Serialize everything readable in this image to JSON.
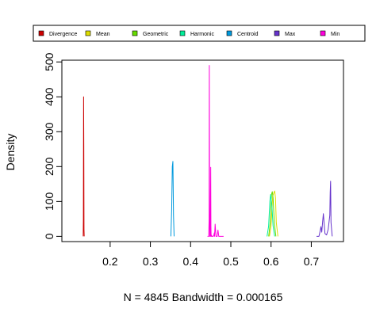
{
  "chart_data": {
    "type": "line",
    "title": "",
    "xlabel": "N = 4845   Bandwidth = 0.000165",
    "ylabel": "Density",
    "xlim": [
      0.08,
      0.78
    ],
    "ylim": [
      -15,
      505
    ],
    "x_ticks": [
      0.2,
      0.3,
      0.4,
      0.5,
      0.6,
      0.7
    ],
    "x_tick_labels": [
      "0.2",
      "0.3",
      "0.4",
      "0.5",
      "0.6",
      "0.7"
    ],
    "y_ticks": [
      0,
      100,
      200,
      300,
      400,
      500
    ],
    "y_tick_labels": [
      "0",
      "100",
      "200",
      "300",
      "400",
      "500"
    ],
    "legend": {
      "placement": "top",
      "orientation": "horizontal"
    },
    "series": [
      {
        "name": "Divergence",
        "color": "#cc0000",
        "x": [
          0.133,
          0.1335,
          0.134,
          0.1345,
          0.135,
          0.1355
        ],
        "y": [
          0,
          50,
          400,
          260,
          20,
          0
        ]
      },
      {
        "name": "Mean",
        "color": "#dddd00",
        "x": [
          0.596,
          0.6,
          0.604,
          0.607,
          0.609,
          0.611,
          0.613,
          0.617
        ],
        "y": [
          0,
          30,
          115,
          125,
          130,
          110,
          40,
          0
        ]
      },
      {
        "name": "Geometric",
        "color": "#66dd00",
        "x": [
          0.594,
          0.598,
          0.601,
          0.603,
          0.605,
          0.608,
          0.612
        ],
        "y": [
          0,
          40,
          120,
          128,
          110,
          40,
          0
        ]
      },
      {
        "name": "Harmonic",
        "color": "#00ee99",
        "x": [
          0.59,
          0.594,
          0.597,
          0.599,
          0.602,
          0.605,
          0.609
        ],
        "y": [
          0,
          30,
          100,
          120,
          90,
          30,
          0
        ]
      },
      {
        "name": "Centroid",
        "color": "#0099dd",
        "x": [
          0.351,
          0.353,
          0.3545,
          0.356,
          0.3575,
          0.359
        ],
        "y": [
          0,
          80,
          200,
          215,
          60,
          0
        ]
      },
      {
        "name": "Max",
        "color": "#6633cc",
        "x": [
          0.713,
          0.719,
          0.722,
          0.724,
          0.726,
          0.728,
          0.73,
          0.734,
          0.738,
          0.742,
          0.746,
          0.747,
          0.748,
          0.749,
          0.752
        ],
        "y": [
          0,
          0,
          15,
          28,
          12,
          40,
          65,
          8,
          4,
          20,
          60,
          125,
          158,
          40,
          0
        ]
      },
      {
        "name": "Min",
        "color": "#ff00dd",
        "x": [
          0.442,
          0.445,
          0.446,
          0.4465,
          0.447,
          0.4475,
          0.449,
          0.4495,
          0.45,
          0.4505,
          0.451,
          0.452,
          0.453,
          0.456,
          0.4575,
          0.459,
          0.4595,
          0.461,
          0.463,
          0.466,
          0.468,
          0.47,
          0.474,
          0.478,
          0.482
        ],
        "y": [
          0,
          0,
          50,
          490,
          180,
          0,
          0,
          100,
          198,
          30,
          0,
          3,
          0,
          0,
          2,
          10,
          0,
          35,
          0,
          0,
          18,
          0,
          0,
          0,
          0
        ]
      }
    ]
  }
}
